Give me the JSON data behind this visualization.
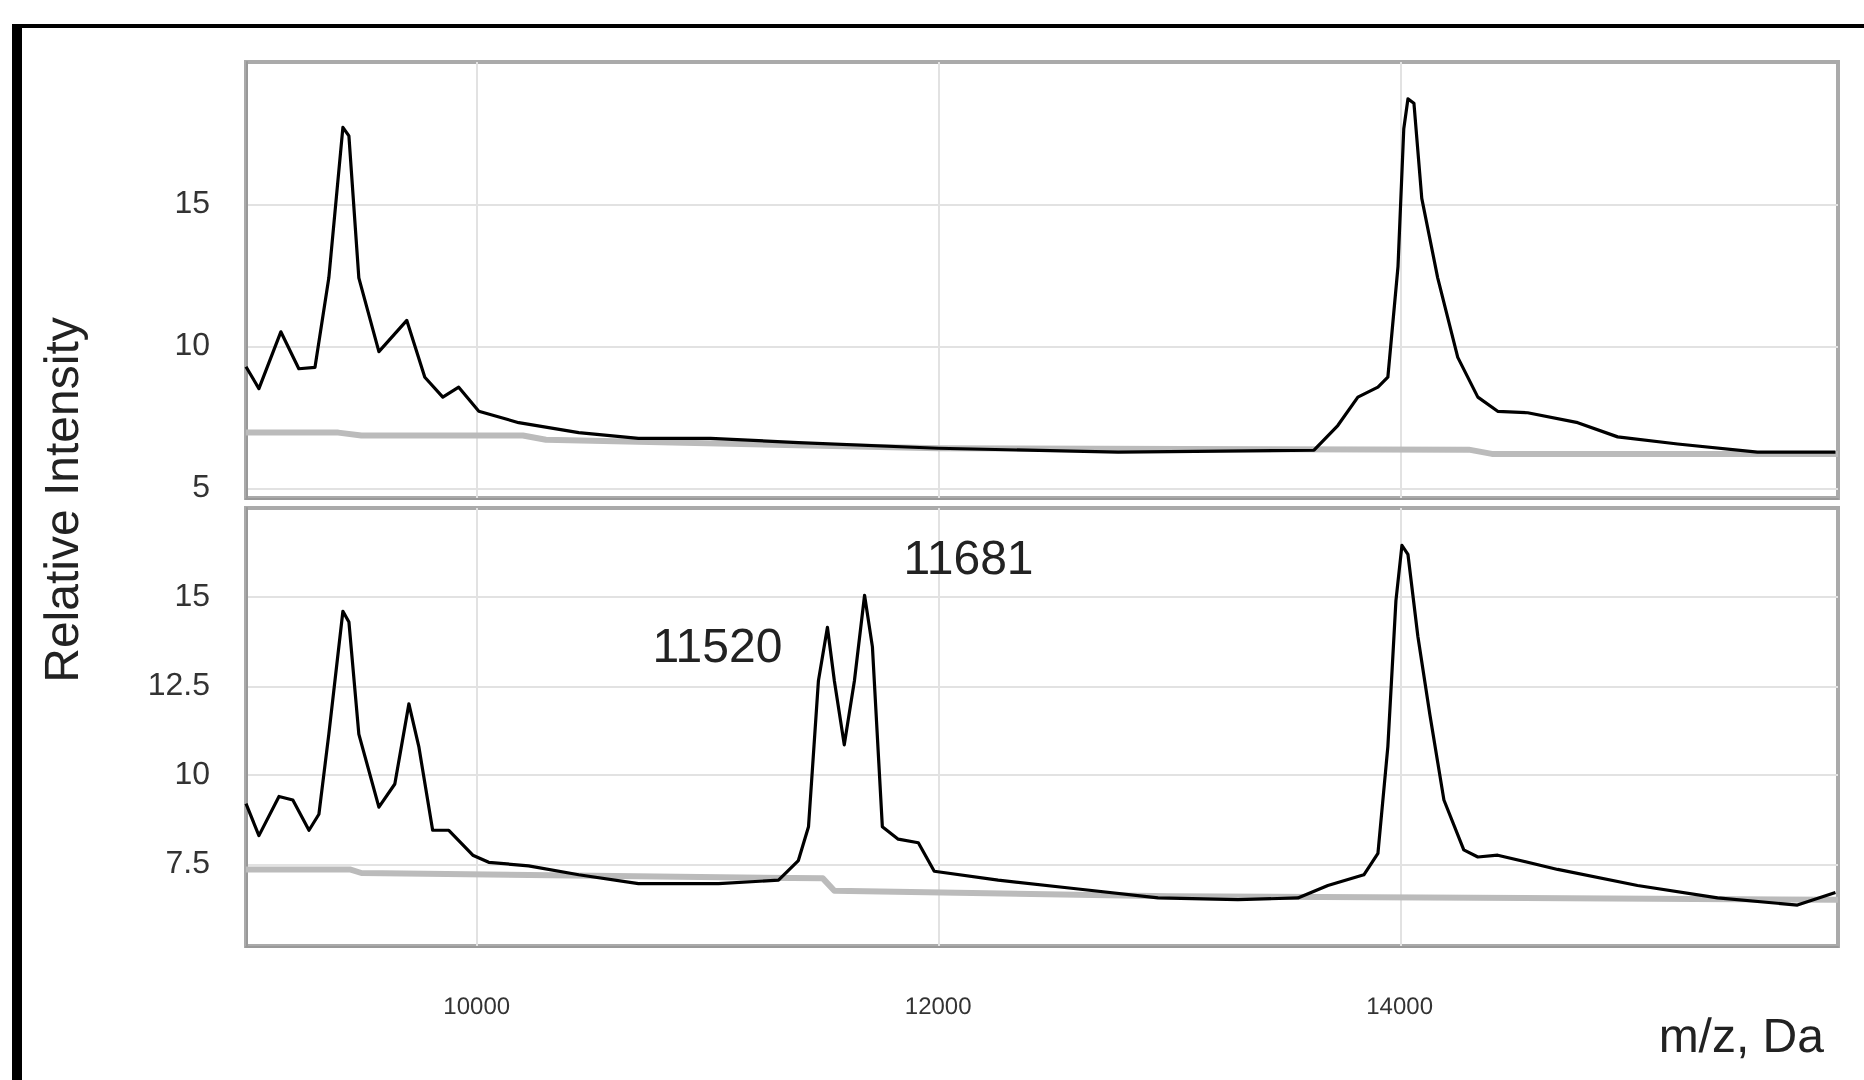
{
  "chart_data": [
    {
      "type": "line",
      "ylabel": "Relative Intensity",
      "xlim": [
        9000,
        15900
      ],
      "xticks": [
        10000,
        12000,
        14000
      ],
      "ylim": [
        4.65,
        20
      ],
      "yticks": [
        5,
        10,
        15
      ],
      "tick_labels": "y",
      "grid": true,
      "marker": "none",
      "series": [
        {
          "color": "#bbbbbb",
          "x": [
            9000,
            9400,
            9500,
            10200,
            10300,
            12000,
            14300,
            14400,
            15900
          ],
          "values": [
            6.95,
            6.95,
            6.85,
            6.85,
            6.7,
            6.4,
            6.35,
            6.2,
            6.2
          ]
        },
        {
          "color": "#000000",
          "x": [
            9000,
            9056,
            9151,
            9229,
            9299,
            9359,
            9420,
            9446,
            9489,
            9576,
            9697,
            9775,
            9853,
            9922,
            10009,
            10182,
            10442,
            10701,
            11013,
            11394,
            12000,
            12780,
            13629,
            13732,
            13819,
            13906,
            13949,
            13993,
            14018,
            14036,
            14062,
            14096,
            14165,
            14252,
            14339,
            14425,
            14555,
            14772,
            14945,
            15205,
            15551,
            15889
          ],
          "values": [
            9.27,
            8.5,
            10.5,
            9.2,
            9.25,
            12.4,
            17.7,
            17.4,
            12.4,
            9.8,
            10.9,
            8.9,
            8.2,
            8.55,
            7.7,
            7.3,
            6.95,
            6.75,
            6.75,
            6.6,
            6.4,
            6.26,
            6.33,
            7.2,
            8.2,
            8.55,
            8.9,
            12.8,
            17.65,
            18.7,
            18.55,
            15.2,
            12.4,
            9.6,
            8.2,
            7.7,
            7.65,
            7.3,
            6.8,
            6.55,
            6.26,
            6.26
          ]
        }
      ]
    },
    {
      "type": "line",
      "xlabel": "m/z, Da",
      "xlim": [
        9000,
        15900
      ],
      "xticks": [
        10000,
        12000,
        14000
      ],
      "ylim": [
        5.2,
        17.5
      ],
      "yticks": [
        7.5,
        10,
        12.5,
        15
      ],
      "grid": true,
      "marker": "none",
      "annotations": [
        {
          "text": "11520",
          "x": 11520,
          "y": 14.15
        },
        {
          "text": "11681",
          "x": 11681,
          "y": 15.05
        }
      ],
      "series": [
        {
          "color": "#bbbbbb",
          "x": [
            9000,
            9450,
            9500,
            11500,
            11550,
            13000,
            15900
          ],
          "values": [
            7.35,
            7.35,
            7.25,
            7.1,
            6.75,
            6.6,
            6.5
          ]
        },
        {
          "color": "#000000",
          "x": [
            9000,
            9056,
            9143,
            9203,
            9273,
            9316,
            9359,
            9420,
            9446,
            9489,
            9576,
            9645,
            9706,
            9749,
            9809,
            9879,
            9983,
            10052,
            10225,
            10442,
            10701,
            11048,
            11308,
            11394,
            11438,
            11481,
            11520,
            11550,
            11593,
            11637,
            11681,
            11715,
            11758,
            11827,
            11914,
            11983,
            12260,
            12607,
            12953,
            13299,
            13559,
            13689,
            13845,
            13906,
            13949,
            13984,
            14010,
            14036,
            14079,
            14131,
            14192,
            14278,
            14339,
            14425,
            14685,
            15031,
            15378,
            15724,
            15889
          ],
          "values": [
            9.2,
            8.3,
            9.4,
            9.3,
            8.45,
            8.9,
            11.15,
            14.6,
            14.3,
            11.15,
            9.1,
            9.75,
            12.0,
            10.8,
            8.45,
            8.45,
            7.75,
            7.55,
            7.45,
            7.2,
            6.95,
            6.95,
            7.05,
            7.6,
            8.55,
            12.65,
            14.15,
            12.65,
            10.85,
            12.65,
            15.05,
            13.6,
            8.55,
            8.2,
            8.1,
            7.3,
            7.05,
            6.8,
            6.55,
            6.5,
            6.55,
            6.9,
            7.2,
            7.8,
            10.8,
            14.9,
            16.45,
            16.2,
            13.9,
            11.7,
            9.3,
            7.9,
            7.7,
            7.75,
            7.35,
            6.9,
            6.55,
            6.35,
            6.7
          ]
        }
      ]
    }
  ]
}
